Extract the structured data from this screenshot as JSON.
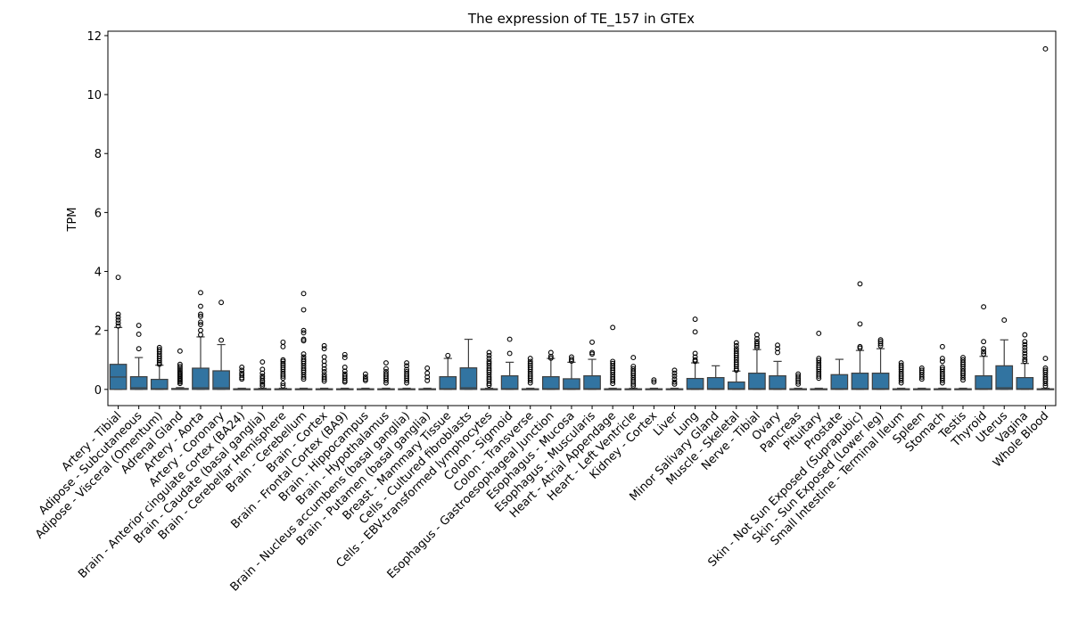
{
  "chart_data": {
    "type": "box",
    "title": "The expression of TE_157 in GTEx",
    "xlabel": "",
    "ylabel": "TPM",
    "ylim": [
      -0.55,
      12.15
    ],
    "yticks": [
      0,
      2,
      4,
      6,
      8,
      10,
      12
    ],
    "box_color": "#3274a1",
    "categories": [
      "Artery - Tibial",
      "Adipose - Subcutaneous",
      "Adipose - Visceral (Omentum)",
      "Adrenal Gland",
      "Artery - Aorta",
      "Artery - Coronary",
      "Brain - Anterior cingulate cortex (BA24)",
      "Brain - Caudate (basal ganglia)",
      "Brain - Cerebellar Hemisphere",
      "Brain - Cerebellum",
      "Brain - Cortex",
      "Brain - Frontal Cortex (BA9)",
      "Brain - Hippocampus",
      "Brain - Hypothalamus",
      "Brain - Nucleus accumbens (basal ganglia)",
      "Brain - Putamen (basal ganglia)",
      "Breast - Mammary Tissue",
      "Cells - Cultured fibroblasts",
      "Cells - EBV-transformed lymphocytes",
      "Colon - Sigmoid",
      "Colon - Transverse",
      "Esophagus - Gastroesophageal Junction",
      "Esophagus - Mucosa",
      "Esophagus - Muscularis",
      "Heart - Atrial Appendage",
      "Heart - Left Ventricle",
      "Kidney - Cortex",
      "Liver",
      "Lung",
      "Minor Salivary Gland",
      "Muscle - Skeletal",
      "Nerve - Tibial",
      "Ovary",
      "Pancreas",
      "Pituitary",
      "Prostate",
      "Skin - Not Sun Exposed (Suprapubic)",
      "Skin - Sun Exposed (Lower leg)",
      "Small Intestine - Terminal Ileum",
      "Spleen",
      "Stomach",
      "Testis",
      "Thyroid",
      "Uterus",
      "Vagina",
      "Whole Blood"
    ],
    "boxes": [
      {
        "q1": 0,
        "median": 0.42,
        "q3": 0.85,
        "whisker_low": 0,
        "whisker_high": 2.1,
        "outliers": [
          3.8,
          2.55,
          2.45,
          2.35,
          2.25,
          2.15
        ]
      },
      {
        "q1": 0,
        "median": 0.05,
        "q3": 0.43,
        "whisker_low": 0,
        "whisker_high": 1.08,
        "outliers": [
          2.17,
          1.87,
          1.38
        ]
      },
      {
        "q1": 0,
        "median": 0.02,
        "q3": 0.34,
        "whisker_low": 0,
        "whisker_high": 0.82,
        "outliers": [
          1.42,
          1.35,
          1.28,
          1.2,
          1.12,
          1.05,
          0.97,
          0.9,
          0.85
        ]
      },
      {
        "q1": 0,
        "median": 0.0,
        "q3": 0.03,
        "whisker_low": 0,
        "whisker_high": 0.06,
        "outliers": [
          1.3,
          0.85,
          0.78,
          0.72,
          0.66,
          0.6,
          0.55,
          0.5,
          0.45,
          0.4,
          0.35,
          0.3,
          0.25,
          0.2
        ]
      },
      {
        "q1": 0,
        "median": 0.05,
        "q3": 0.72,
        "whisker_low": 0,
        "whisker_high": 1.78,
        "outliers": [
          3.28,
          2.82,
          2.55,
          2.48,
          2.28,
          2.2,
          2.0,
          1.85
        ]
      },
      {
        "q1": 0,
        "median": 0.05,
        "q3": 0.63,
        "whisker_low": 0,
        "whisker_high": 1.52,
        "outliers": [
          2.95,
          1.67
        ]
      },
      {
        "q1": 0,
        "median": 0.0,
        "q3": 0.02,
        "whisker_low": 0,
        "whisker_high": 0.04,
        "outliers": [
          0.75,
          0.65,
          0.55,
          0.48,
          0.4,
          0.35
        ]
      },
      {
        "q1": 0,
        "median": 0.0,
        "q3": 0.02,
        "whisker_low": 0,
        "whisker_high": 0.04,
        "outliers": [
          0.93,
          0.68,
          0.55,
          0.45,
          0.38,
          0.3,
          0.25,
          0.18,
          0.12
        ]
      },
      {
        "q1": 0,
        "median": 0.0,
        "q3": 0.02,
        "whisker_low": 0,
        "whisker_high": 0.04,
        "outliers": [
          1.6,
          1.45,
          1.0,
          0.95,
          0.88,
          0.82,
          0.75,
          0.68,
          0.6,
          0.52,
          0.45,
          0.38,
          0.2,
          0.12
        ]
      },
      {
        "q1": 0,
        "median": 0.0,
        "q3": 0.02,
        "whisker_low": 0,
        "whisker_high": 0.04,
        "outliers": [
          3.25,
          2.7,
          2.0,
          1.92,
          1.7,
          1.65,
          1.2,
          1.1,
          1.02,
          0.95,
          0.88,
          0.8,
          0.72,
          0.65,
          0.58,
          0.5,
          0.42,
          0.35
        ]
      },
      {
        "q1": 0,
        "median": 0.0,
        "q3": 0.02,
        "whisker_low": 0,
        "whisker_high": 0.04,
        "outliers": [
          1.48,
          1.38,
          1.1,
          0.95,
          0.82,
          0.7,
          0.6,
          0.5,
          0.42,
          0.35,
          0.28
        ]
      },
      {
        "q1": 0,
        "median": 0.0,
        "q3": 0.02,
        "whisker_low": 0,
        "whisker_high": 0.04,
        "outliers": [
          1.18,
          1.08,
          0.75,
          0.62,
          0.52,
          0.45,
          0.38,
          0.3,
          0.25
        ]
      },
      {
        "q1": 0,
        "median": 0.0,
        "q3": 0.02,
        "whisker_low": 0,
        "whisker_high": 0.04,
        "outliers": [
          0.52,
          0.42,
          0.35,
          0.3
        ]
      },
      {
        "q1": 0,
        "median": 0.0,
        "q3": 0.02,
        "whisker_low": 0,
        "whisker_high": 0.04,
        "outliers": [
          0.9,
          0.7,
          0.6,
          0.52,
          0.45,
          0.38,
          0.3,
          0.22
        ]
      },
      {
        "q1": 0,
        "median": 0.0,
        "q3": 0.02,
        "whisker_low": 0,
        "whisker_high": 0.04,
        "outliers": [
          0.9,
          0.8,
          0.68,
          0.6,
          0.52,
          0.45,
          0.38,
          0.3,
          0.22
        ]
      },
      {
        "q1": 0,
        "median": 0.0,
        "q3": 0.02,
        "whisker_low": 0,
        "whisker_high": 0.04,
        "outliers": [
          0.72,
          0.55,
          0.42,
          0.3
        ]
      },
      {
        "q1": 0,
        "median": 0.02,
        "q3": 0.43,
        "whisker_low": 0,
        "whisker_high": 1.05,
        "outliers": [
          1.15
        ]
      },
      {
        "q1": 0,
        "median": 0.05,
        "q3": 0.73,
        "whisker_low": 0,
        "whisker_high": 1.7,
        "outliers": []
      },
      {
        "q1": 0,
        "median": 0.0,
        "q3": 0.02,
        "whisker_low": 0,
        "whisker_high": 0.04,
        "outliers": [
          1.25,
          1.15,
          1.05,
          0.95,
          0.88,
          0.8,
          0.72,
          0.65,
          0.58,
          0.5,
          0.42,
          0.35,
          0.28,
          0.2,
          0.14
        ]
      },
      {
        "q1": 0,
        "median": 0.02,
        "q3": 0.46,
        "whisker_low": 0,
        "whisker_high": 0.92,
        "outliers": [
          1.7,
          1.22
        ]
      },
      {
        "q1": 0,
        "median": 0.0,
        "q3": 0.02,
        "whisker_low": 0,
        "whisker_high": 0.04,
        "outliers": [
          1.05,
          0.95,
          0.88,
          0.82,
          0.75,
          0.68,
          0.6,
          0.52,
          0.45,
          0.38,
          0.3,
          0.22
        ]
      },
      {
        "q1": 0,
        "median": 0.02,
        "q3": 0.43,
        "whisker_low": 0,
        "whisker_high": 1.05,
        "outliers": [
          1.25,
          1.12,
          1.06
        ]
      },
      {
        "q1": 0,
        "median": 0.02,
        "q3": 0.36,
        "whisker_low": 0,
        "whisker_high": 0.92,
        "outliers": [
          1.1,
          1.02,
          0.96
        ]
      },
      {
        "q1": 0,
        "median": 0.02,
        "q3": 0.46,
        "whisker_low": 0,
        "whisker_high": 1.02,
        "outliers": [
          1.6,
          1.25,
          1.2
        ]
      },
      {
        "q1": 0,
        "median": 0.0,
        "q3": 0.02,
        "whisker_low": 0,
        "whisker_high": 0.04,
        "outliers": [
          2.1,
          0.95,
          0.88,
          0.8,
          0.72,
          0.65,
          0.58,
          0.5,
          0.42,
          0.35,
          0.28,
          0.2
        ]
      },
      {
        "q1": 0,
        "median": 0.0,
        "q3": 0.02,
        "whisker_low": 0,
        "whisker_high": 0.04,
        "outliers": [
          1.08,
          0.78,
          0.7,
          0.62,
          0.55,
          0.48,
          0.4,
          0.32,
          0.25,
          0.18,
          0.12
        ]
      },
      {
        "q1": 0,
        "median": 0.0,
        "q3": 0.02,
        "whisker_low": 0,
        "whisker_high": 0.04,
        "outliers": [
          0.32,
          0.25
        ]
      },
      {
        "q1": 0,
        "median": 0.0,
        "q3": 0.02,
        "whisker_low": 0,
        "whisker_high": 0.04,
        "outliers": [
          0.65,
          0.55,
          0.45,
          0.35,
          0.25,
          0.18
        ]
      },
      {
        "q1": 0,
        "median": 0.02,
        "q3": 0.37,
        "whisker_low": 0,
        "whisker_high": 0.9,
        "outliers": [
          2.38,
          1.95,
          1.22,
          1.1,
          1.0,
          0.95
        ]
      },
      {
        "q1": 0,
        "median": 0.02,
        "q3": 0.4,
        "whisker_low": 0,
        "whisker_high": 0.8,
        "outliers": []
      },
      {
        "q1": 0,
        "median": 0.02,
        "q3": 0.25,
        "whisker_low": 0,
        "whisker_high": 0.62,
        "outliers": [
          1.58,
          1.48,
          1.38,
          1.3,
          1.22,
          1.15,
          1.08,
          1.0,
          0.92,
          0.85,
          0.78,
          0.7,
          0.65
        ]
      },
      {
        "q1": 0,
        "median": 0.02,
        "q3": 0.55,
        "whisker_low": 0,
        "whisker_high": 1.35,
        "outliers": [
          1.85,
          1.72,
          1.62,
          1.55,
          1.48,
          1.42
        ]
      },
      {
        "q1": 0,
        "median": 0.02,
        "q3": 0.46,
        "whisker_low": 0,
        "whisker_high": 0.95,
        "outliers": [
          1.5,
          1.38,
          1.25
        ]
      },
      {
        "q1": 0,
        "median": 0.0,
        "q3": 0.02,
        "whisker_low": 0,
        "whisker_high": 0.04,
        "outliers": [
          0.52,
          0.45,
          0.38,
          0.32,
          0.25,
          0.18
        ]
      },
      {
        "q1": 0,
        "median": 0.0,
        "q3": 0.02,
        "whisker_low": 0,
        "whisker_high": 0.04,
        "outliers": [
          1.9,
          1.05,
          0.98,
          0.9,
          0.82,
          0.75,
          0.68,
          0.6,
          0.52,
          0.45,
          0.38
        ]
      },
      {
        "q1": 0,
        "median": 0.02,
        "q3": 0.5,
        "whisker_low": 0,
        "whisker_high": 1.02,
        "outliers": []
      },
      {
        "q1": 0,
        "median": 0.02,
        "q3": 0.55,
        "whisker_low": 0,
        "whisker_high": 1.32,
        "outliers": [
          3.58,
          2.22,
          1.45,
          1.4
        ]
      },
      {
        "q1": 0,
        "median": 0.02,
        "q3": 0.55,
        "whisker_low": 0,
        "whisker_high": 1.38,
        "outliers": [
          1.68,
          1.62,
          1.55,
          1.48
        ]
      },
      {
        "q1": 0,
        "median": 0.0,
        "q3": 0.02,
        "whisker_low": 0,
        "whisker_high": 0.04,
        "outliers": [
          0.9,
          0.82,
          0.75,
          0.68,
          0.6,
          0.52,
          0.45,
          0.38,
          0.3,
          0.22
        ]
      },
      {
        "q1": 0,
        "median": 0.0,
        "q3": 0.02,
        "whisker_low": 0,
        "whisker_high": 0.04,
        "outliers": [
          0.72,
          0.65,
          0.58,
          0.5,
          0.42,
          0.35
        ]
      },
      {
        "q1": 0,
        "median": 0.0,
        "q3": 0.02,
        "whisker_low": 0,
        "whisker_high": 0.04,
        "outliers": [
          1.45,
          1.05,
          0.95,
          0.75,
          0.68,
          0.6,
          0.52,
          0.45,
          0.38,
          0.3,
          0.22
        ]
      },
      {
        "q1": 0,
        "median": 0.0,
        "q3": 0.02,
        "whisker_low": 0,
        "whisker_high": 0.04,
        "outliers": [
          1.08,
          1.0,
          0.92,
          0.85,
          0.78,
          0.7,
          0.62,
          0.55,
          0.48,
          0.4,
          0.32
        ]
      },
      {
        "q1": 0,
        "median": 0.02,
        "q3": 0.46,
        "whisker_low": 0,
        "whisker_high": 1.12,
        "outliers": [
          2.8,
          1.62,
          1.38,
          1.28,
          1.2
        ]
      },
      {
        "q1": 0,
        "median": 0.05,
        "q3": 0.8,
        "whisker_low": 0,
        "whisker_high": 1.68,
        "outliers": [
          2.35
        ]
      },
      {
        "q1": 0,
        "median": 0.02,
        "q3": 0.4,
        "whisker_low": 0,
        "whisker_high": 0.88,
        "outliers": [
          1.85,
          1.62,
          1.52,
          1.42,
          1.32,
          1.22,
          1.12,
          1.02,
          0.95
        ]
      },
      {
        "q1": 0,
        "median": 0.0,
        "q3": 0.02,
        "whisker_low": 0,
        "whisker_high": 0.04,
        "outliers": [
          11.55,
          1.05,
          0.72,
          0.65,
          0.58,
          0.5,
          0.42,
          0.35,
          0.28,
          0.2,
          0.12
        ]
      }
    ]
  }
}
